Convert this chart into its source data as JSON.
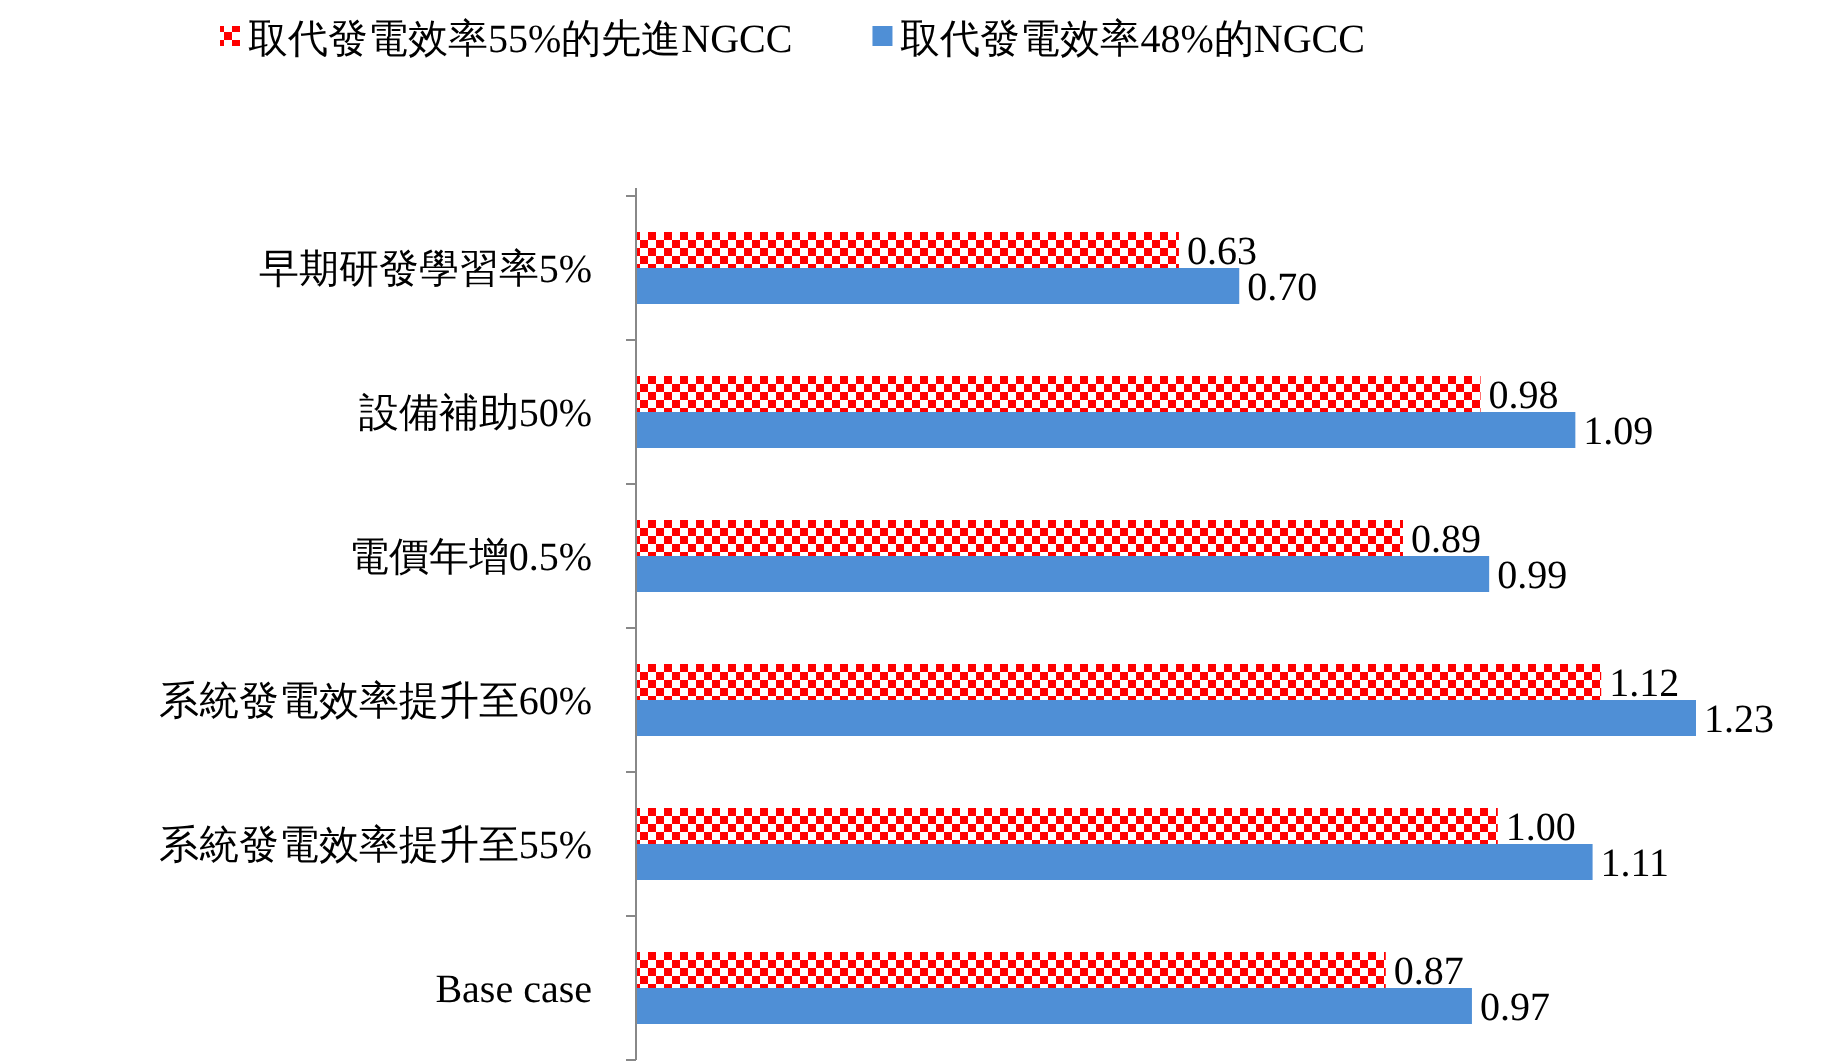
{
  "chart_data": {
    "type": "bar",
    "orientation": "horizontal",
    "legend": "top",
    "categories": [
      "早期研發學習率5%",
      "設備補助50%",
      "電價年增0.5%",
      "系統發電效率提升至60%",
      "系統發電效率提升至55%",
      "Base case"
    ],
    "series": [
      {
        "name": "取代發電效率55%的先進NGCC",
        "color": "#ff0000",
        "values": [
          0.63,
          0.98,
          0.89,
          1.12,
          1.0,
          0.87
        ],
        "value_labels": [
          "0.63",
          "0.98",
          "0.89",
          "1.12",
          "1.00",
          "0.87"
        ]
      },
      {
        "name": "取代發電效率48%的NGCC",
        "color": "#4f8fd6",
        "values": [
          0.7,
          1.09,
          0.99,
          1.23,
          1.11,
          0.97
        ],
        "value_labels": [
          "0.70",
          "1.09",
          "0.99",
          "1.23",
          "1.11",
          "0.97"
        ]
      }
    ]
  }
}
